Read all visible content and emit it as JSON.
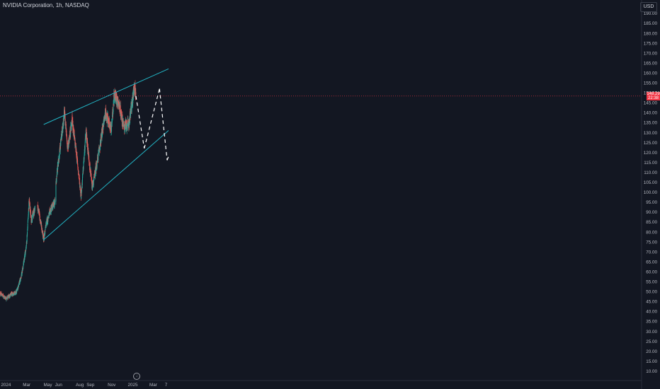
{
  "legend": {
    "title": "NVIDIA Corporation, 1h, NASDAQ"
  },
  "axis": {
    "currency": "USD"
  },
  "last_price": {
    "value": "148.29",
    "countdown": "22:38"
  },
  "colors": {
    "background": "#131722",
    "up": "#26a69a",
    "down": "#ef5350",
    "channel": "#22b5c5",
    "projection": "#ffffff",
    "tag": "#f23645",
    "axis_text": "#b2b5be"
  },
  "icons": {
    "goto_date": "arrow-down-circle-icon"
  },
  "chart_data": {
    "type": "candlestick",
    "title": "NVIDIA Corporation, 1h, NASDAQ",
    "y_axis": {
      "side": "right",
      "range": [
        5,
        195
      ],
      "ticks": [
        10,
        15,
        20,
        25,
        30,
        35,
        40,
        45,
        50,
        55,
        60,
        65,
        70,
        75,
        80,
        85,
        90,
        95,
        100,
        105,
        110,
        115,
        120,
        125,
        130,
        135,
        140,
        145,
        150,
        155,
        160,
        165,
        170,
        175,
        180,
        185,
        190
      ],
      "tick_labels": [
        "10.00",
        "15.00",
        "20.00",
        "25.00",
        "30.00",
        "35.00",
        "40.00",
        "45.00",
        "50.00",
        "55.00",
        "60.00",
        "65.00",
        "70.00",
        "75.00",
        "80.00",
        "85.00",
        "90.00",
        "95.00",
        "100.00",
        "105.00",
        "110.00",
        "115.00",
        "120.00",
        "125.00",
        "130.00",
        "135.00",
        "140.00",
        "145.00",
        "150.00",
        "155.00",
        "160.00",
        "165.00",
        "170.00",
        "175.00",
        "180.00",
        "185.00",
        "190.00"
      ]
    },
    "x_axis": {
      "labels": [
        "2024",
        "Mar",
        "May",
        "Jun",
        "Aug",
        "Sep",
        "Nov",
        "2025",
        "Mar",
        "7"
      ],
      "label_dates": [
        "2024-01-01",
        "2024-03-01",
        "2024-05-01",
        "2024-06-01",
        "2024-08-01",
        "2024-09-01",
        "2024-11-01",
        "2025-01-01",
        "2025-03-01",
        "2025-04-07"
      ]
    },
    "price_path": [
      [
        "2023-12-15",
        49
      ],
      [
        "2024-01-02",
        46.5
      ],
      [
        "2024-01-16",
        48.5
      ],
      [
        "2024-01-31",
        49.5
      ],
      [
        "2024-02-15",
        58
      ],
      [
        "2024-02-23",
        66
      ],
      [
        "2024-03-01",
        75
      ],
      [
        "2024-03-08",
        96
      ],
      [
        "2024-03-14",
        86
      ],
      [
        "2024-03-22",
        90
      ],
      [
        "2024-03-28",
        95
      ],
      [
        "2024-04-04",
        91
      ],
      [
        "2024-04-19",
        76
      ],
      [
        "2024-04-26",
        84
      ],
      [
        "2024-05-09",
        91
      ],
      [
        "2024-05-22",
        95
      ],
      [
        "2024-05-23",
        103
      ],
      [
        "2024-06-05",
        122
      ],
      [
        "2024-06-18",
        140
      ],
      [
        "2024-06-27",
        122
      ],
      [
        "2024-07-10",
        136
      ],
      [
        "2024-07-22",
        120
      ],
      [
        "2024-08-05",
        98
      ],
      [
        "2024-08-19",
        130
      ],
      [
        "2024-09-06",
        102
      ],
      [
        "2024-09-23",
        118
      ],
      [
        "2024-10-14",
        140
      ],
      [
        "2024-10-31",
        131
      ],
      [
        "2024-11-08",
        149
      ],
      [
        "2024-11-21",
        145
      ],
      [
        "2024-12-06",
        133
      ],
      [
        "2024-12-20",
        134
      ],
      [
        "2025-01-06",
        153
      ],
      [
        "2025-01-10",
        148.29
      ]
    ],
    "trendlines": [
      {
        "name": "upper",
        "points": [
          [
            "2024-04-19",
            134
          ],
          [
            "2025-04-14",
            162
          ]
        ]
      },
      {
        "name": "lower",
        "points": [
          [
            "2024-04-19",
            76
          ],
          [
            "2025-04-14",
            131
          ]
        ]
      }
    ],
    "projection": [
      [
        "2025-01-10",
        148.29
      ],
      [
        "2025-02-03",
        122
      ],
      [
        "2025-03-19",
        152
      ],
      [
        "2025-04-10",
        116
      ],
      [
        "2025-04-14",
        118
      ]
    ],
    "last_price": 148.29
  }
}
